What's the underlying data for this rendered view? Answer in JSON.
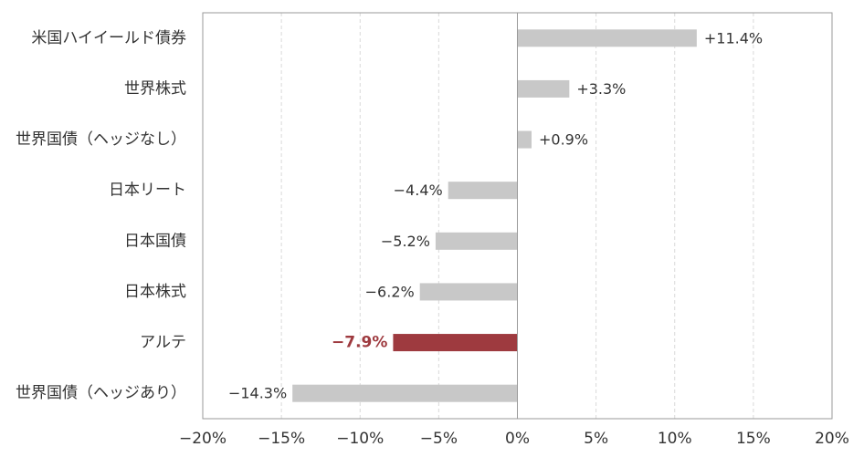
{
  "chart_data": {
    "type": "bar",
    "orientation": "horizontal",
    "categories": [
      "米国ハイイールド債券",
      "世界株式",
      "世界国債（ヘッジなし）",
      "日本リート",
      "日本国債",
      "日本株式",
      "アルテ",
      "世界国債（ヘッジあり）"
    ],
    "values": [
      11.4,
      3.3,
      0.9,
      -4.4,
      -5.2,
      -6.2,
      -7.9,
      -14.3
    ],
    "value_labels": [
      "+11.4%",
      "+3.3%",
      "+0.9%",
      "−4.4%",
      "−5.2%",
      "−6.2%",
      "−7.9%",
      "−14.3%"
    ],
    "highlight_index": 6,
    "xlim": [
      -20,
      20
    ],
    "x_ticks": [
      -20,
      -15,
      -10,
      -5,
      0,
      5,
      10,
      15,
      20
    ],
    "x_tick_labels": [
      "−20%",
      "−15%",
      "−10%",
      "−5%",
      "0%",
      "5%",
      "10%",
      "15%",
      "20%"
    ],
    "grid": "vertical dashed",
    "colors": {
      "bar": "#C8C8C8",
      "highlight": "#9E3A3F",
      "axis": "#999999",
      "grid": "#D9D9D9",
      "text": "#333333"
    }
  }
}
